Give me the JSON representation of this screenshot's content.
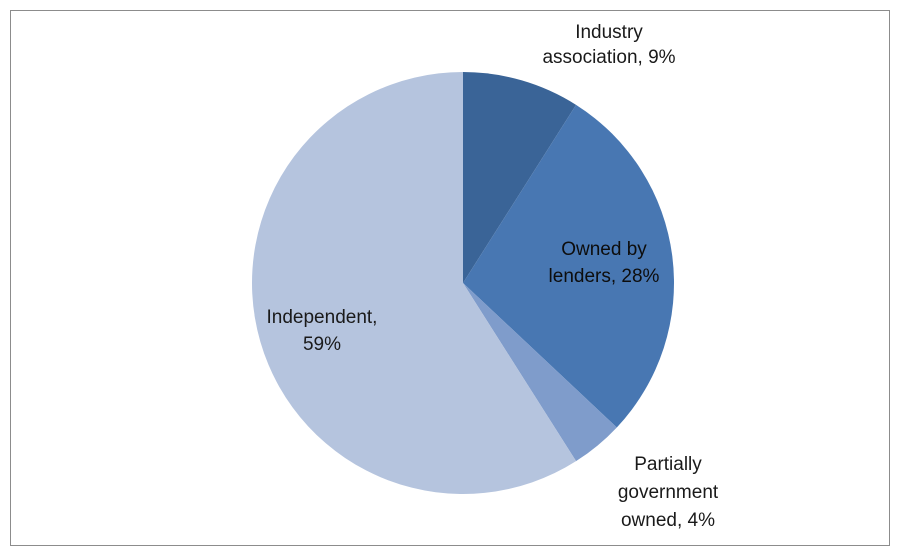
{
  "chart_data": {
    "type": "pie",
    "title": "",
    "slices": [
      {
        "label_lines": [
          "Industry",
          "association, 9%"
        ],
        "category": "Industry association",
        "value": 9,
        "color": "#3a6497",
        "label_color": "#1a1a1a"
      },
      {
        "label_lines": [
          "Owned by",
          "lenders, 28%"
        ],
        "category": "Owned by lenders",
        "value": 28,
        "color": "#4877b2",
        "label_color": "#0d0d0d"
      },
      {
        "label_lines": [
          "Partially",
          "government",
          "owned, 4%"
        ],
        "category": "Partially government owned",
        "value": 4,
        "color": "#7f9ccb",
        "label_color": "#1a1a1a"
      },
      {
        "label_lines": [
          "Independent,",
          "59%"
        ],
        "category": "Independent",
        "value": 59,
        "color": "#b5c4de",
        "label_color": "#1a1a1a"
      }
    ],
    "start": "12 o'clock",
    "direction": "clockwise",
    "legend": "none"
  }
}
